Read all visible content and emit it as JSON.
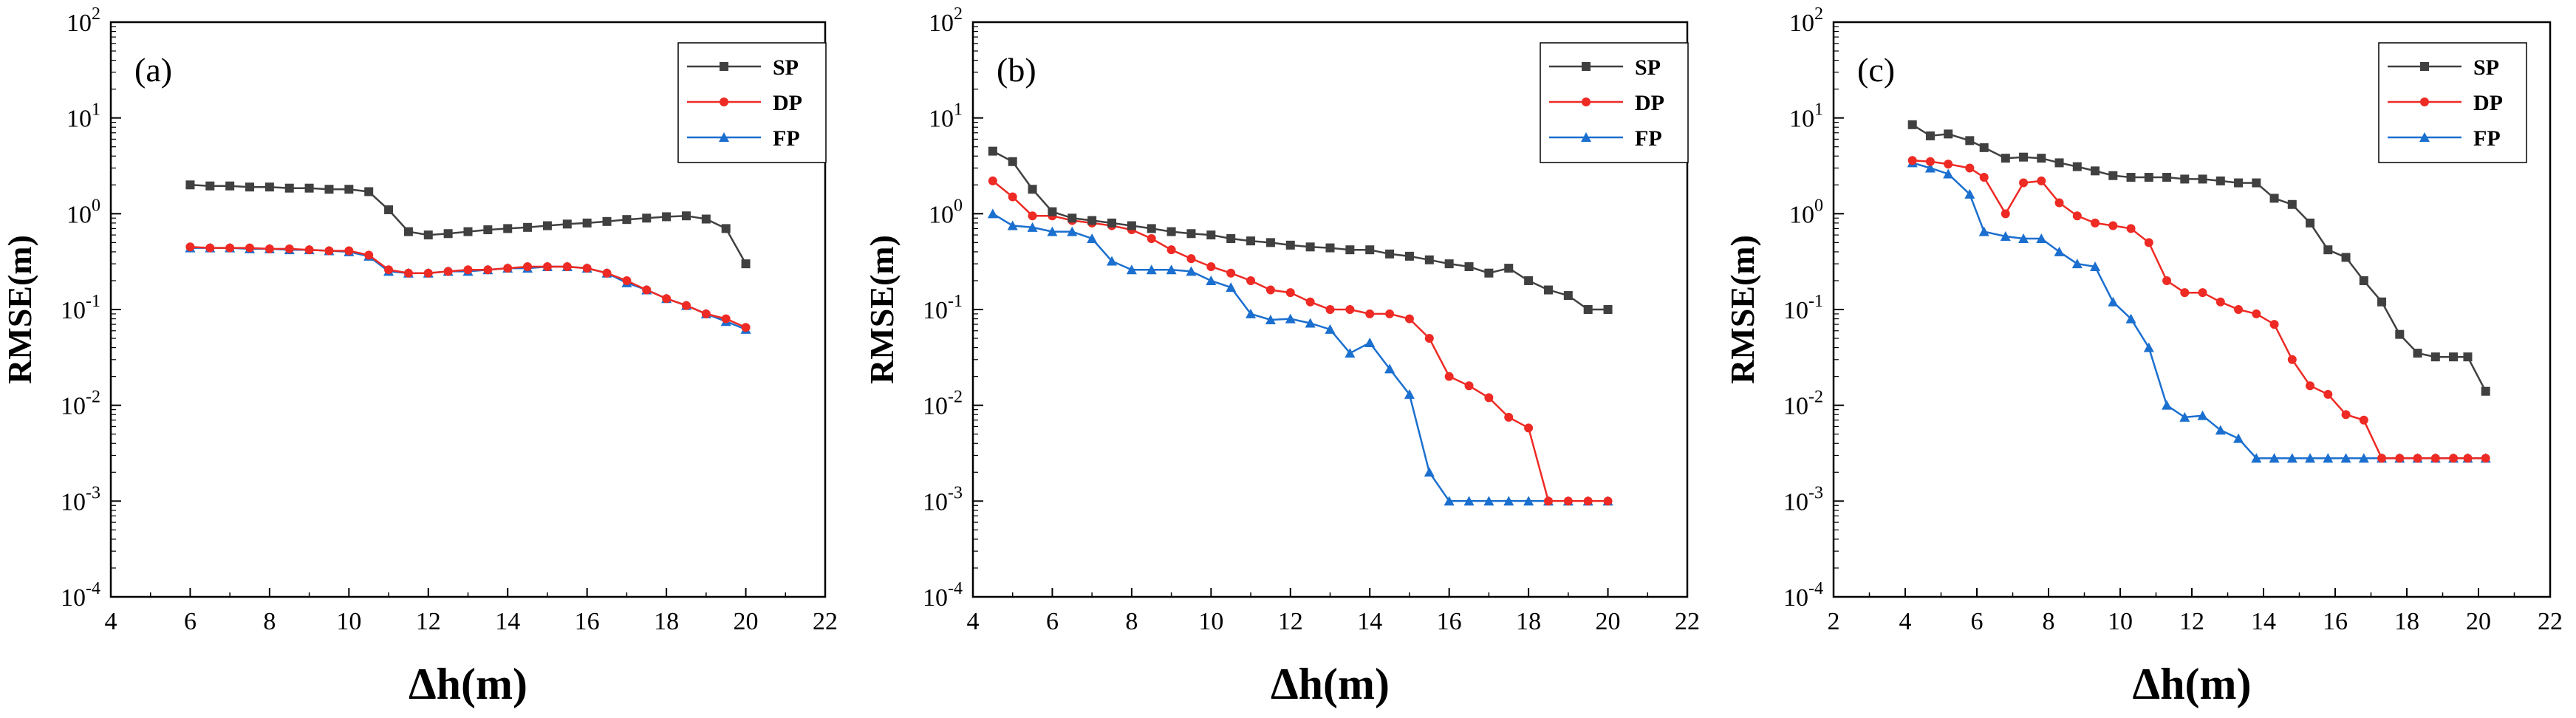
{
  "chart_data": [
    {
      "type": "line",
      "panel_label": "(a)",
      "xlabel": "Δh(m)",
      "ylabel": "RMSE(m)",
      "xlim": [
        4,
        22
      ],
      "ylim": [
        0.0001,
        100
      ],
      "yscale": "log",
      "xticks": [
        "4",
        "6",
        "8",
        "10",
        "12",
        "14",
        "16",
        "18",
        "20",
        "22"
      ],
      "yticks": [
        {
          "base": "10",
          "exp": "-4"
        },
        {
          "base": "10",
          "exp": "-3"
        },
        {
          "base": "10",
          "exp": "-2"
        },
        {
          "base": "10",
          "exp": "-1"
        },
        {
          "base": "10",
          "exp": "0"
        },
        {
          "base": "10",
          "exp": "1"
        },
        {
          "base": "10",
          "exp": "2"
        }
      ],
      "legend_position": "top-right",
      "grid": false,
      "series": [
        {
          "name": "SP",
          "color": "#404040",
          "marker": "square",
          "x": [
            6.0,
            6.5,
            7.0,
            7.5,
            8.0,
            8.5,
            9.0,
            9.5,
            10.0,
            10.5,
            11.0,
            11.5,
            12.0,
            12.5,
            13.0,
            13.5,
            14.0,
            14.5,
            15.0,
            15.5,
            16.0,
            16.5,
            17.0,
            17.5,
            18.0,
            18.5,
            19.0,
            19.5,
            20.0
          ],
          "y": [
            2.0,
            1.95,
            1.95,
            1.9,
            1.9,
            1.85,
            1.85,
            1.8,
            1.8,
            1.7,
            1.1,
            0.65,
            0.6,
            0.62,
            0.65,
            0.68,
            0.7,
            0.72,
            0.75,
            0.78,
            0.8,
            0.83,
            0.87,
            0.9,
            0.93,
            0.95,
            0.88,
            0.7,
            0.3
          ]
        },
        {
          "name": "DP",
          "color": "#ee2a24",
          "marker": "circle",
          "x": [
            6.0,
            6.5,
            7.0,
            7.5,
            8.0,
            8.5,
            9.0,
            9.5,
            10.0,
            10.5,
            11.0,
            11.5,
            12.0,
            12.5,
            13.0,
            13.5,
            14.0,
            14.5,
            15.0,
            15.5,
            16.0,
            16.5,
            17.0,
            17.5,
            18.0,
            18.5,
            19.0,
            19.5,
            20.0
          ],
          "y": [
            0.45,
            0.44,
            0.44,
            0.44,
            0.43,
            0.43,
            0.42,
            0.41,
            0.41,
            0.37,
            0.26,
            0.24,
            0.24,
            0.25,
            0.26,
            0.26,
            0.27,
            0.28,
            0.28,
            0.28,
            0.27,
            0.24,
            0.2,
            0.16,
            0.13,
            0.11,
            0.09,
            0.08,
            0.065
          ]
        },
        {
          "name": "FP",
          "color": "#1b6fcf",
          "marker": "triangle",
          "x": [
            6.0,
            6.5,
            7.0,
            7.5,
            8.0,
            8.5,
            9.0,
            9.5,
            10.0,
            10.5,
            11.0,
            11.5,
            12.0,
            12.5,
            13.0,
            13.5,
            14.0,
            14.5,
            15.0,
            15.5,
            16.0,
            16.5,
            17.0,
            17.5,
            18.0,
            18.5,
            19.0,
            19.5,
            20.0
          ],
          "y": [
            0.44,
            0.44,
            0.44,
            0.43,
            0.43,
            0.42,
            0.42,
            0.41,
            0.4,
            0.36,
            0.25,
            0.24,
            0.24,
            0.25,
            0.25,
            0.26,
            0.27,
            0.27,
            0.28,
            0.28,
            0.27,
            0.24,
            0.19,
            0.16,
            0.13,
            0.11,
            0.09,
            0.075,
            0.062
          ]
        }
      ]
    },
    {
      "type": "line",
      "panel_label": "(b)",
      "xlabel": "Δh(m)",
      "ylabel": "RMSE(m)",
      "xlim": [
        4,
        22
      ],
      "ylim": [
        0.0001,
        100
      ],
      "yscale": "log",
      "xticks": [
        "4",
        "6",
        "8",
        "10",
        "12",
        "14",
        "16",
        "18",
        "20",
        "22"
      ],
      "yticks": [
        {
          "base": "10",
          "exp": "-4"
        },
        {
          "base": "10",
          "exp": "-3"
        },
        {
          "base": "10",
          "exp": "-2"
        },
        {
          "base": "10",
          "exp": "-1"
        },
        {
          "base": "10",
          "exp": "0"
        },
        {
          "base": "10",
          "exp": "1"
        },
        {
          "base": "10",
          "exp": "2"
        }
      ],
      "legend_position": "top-right",
      "grid": false,
      "series": [
        {
          "name": "SP",
          "color": "#404040",
          "marker": "square",
          "x": [
            4.5,
            5.0,
            5.5,
            6.0,
            6.5,
            7.0,
            7.5,
            8.0,
            8.5,
            9.0,
            9.5,
            10.0,
            10.5,
            11.0,
            11.5,
            12.0,
            12.5,
            13.0,
            13.5,
            14.0,
            14.5,
            15.0,
            15.5,
            16.0,
            16.5,
            17.0,
            17.5,
            18.0,
            18.5,
            19.0,
            19.5,
            20.0
          ],
          "y": [
            4.5,
            3.5,
            1.8,
            1.05,
            0.9,
            0.85,
            0.8,
            0.75,
            0.7,
            0.65,
            0.62,
            0.6,
            0.55,
            0.52,
            0.5,
            0.47,
            0.45,
            0.44,
            0.42,
            0.42,
            0.38,
            0.36,
            0.33,
            0.3,
            0.28,
            0.24,
            0.27,
            0.2,
            0.16,
            0.14,
            0.1,
            0.1
          ]
        },
        {
          "name": "DP",
          "color": "#ee2a24",
          "marker": "circle",
          "x": [
            4.5,
            5.0,
            5.5,
            6.0,
            6.5,
            7.0,
            7.5,
            8.0,
            8.5,
            9.0,
            9.5,
            10.0,
            10.5,
            11.0,
            11.5,
            12.0,
            12.5,
            13.0,
            13.5,
            14.0,
            14.5,
            15.0,
            15.5,
            16.0,
            16.5,
            17.0,
            17.5,
            18.0,
            18.5,
            19.0,
            19.5,
            20.0
          ],
          "y": [
            2.2,
            1.5,
            0.95,
            0.95,
            0.85,
            0.8,
            0.75,
            0.68,
            0.55,
            0.42,
            0.34,
            0.28,
            0.24,
            0.2,
            0.16,
            0.15,
            0.12,
            0.1,
            0.1,
            0.09,
            0.09,
            0.08,
            0.05,
            0.02,
            0.016,
            0.012,
            0.0075,
            0.0058,
            0.001,
            0.001,
            0.001,
            0.001
          ]
        },
        {
          "name": "FP",
          "color": "#1b6fcf",
          "marker": "triangle",
          "x": [
            4.5,
            5.0,
            5.5,
            6.0,
            6.5,
            7.0,
            7.5,
            8.0,
            8.5,
            9.0,
            9.5,
            10.0,
            10.5,
            11.0,
            11.5,
            12.0,
            12.5,
            13.0,
            13.5,
            14.0,
            14.5,
            15.0,
            15.5,
            16.0,
            16.5,
            17.0,
            17.5,
            18.0,
            18.5,
            19.0,
            19.5,
            20.0
          ],
          "y": [
            1.0,
            0.75,
            0.72,
            0.65,
            0.65,
            0.55,
            0.32,
            0.26,
            0.26,
            0.26,
            0.25,
            0.2,
            0.17,
            0.09,
            0.078,
            0.08,
            0.072,
            0.062,
            0.035,
            0.045,
            0.024,
            0.013,
            0.002,
            0.001,
            0.001,
            0.001,
            0.001,
            0.001,
            0.001,
            0.001,
            0.001,
            0.001
          ]
        }
      ]
    },
    {
      "type": "line",
      "panel_label": "(c)",
      "xlabel": "Δh(m)",
      "ylabel": "RMSE(m)",
      "xlim": [
        2,
        22
      ],
      "ylim": [
        0.0001,
        100
      ],
      "yscale": "log",
      "xticks": [
        "2",
        "4",
        "6",
        "8",
        "10",
        "12",
        "14",
        "16",
        "18",
        "20",
        "22"
      ],
      "yticks": [
        {
          "base": "10",
          "exp": "-4"
        },
        {
          "base": "10",
          "exp": "-3"
        },
        {
          "base": "10",
          "exp": "-2"
        },
        {
          "base": "10",
          "exp": "-1"
        },
        {
          "base": "10",
          "exp": "0"
        },
        {
          "base": "10",
          "exp": "1"
        },
        {
          "base": "10",
          "exp": "2"
        }
      ],
      "legend_position": "top-right",
      "grid": false,
      "series": [
        {
          "name": "SP",
          "color": "#404040",
          "marker": "square",
          "x": [
            4.2,
            4.7,
            5.2,
            5.8,
            6.2,
            6.8,
            7.3,
            7.8,
            8.3,
            8.8,
            9.3,
            9.8,
            10.3,
            10.8,
            11.3,
            11.8,
            12.3,
            12.8,
            13.3,
            13.8,
            14.3,
            14.8,
            15.3,
            15.8,
            16.3,
            16.8,
            17.3,
            17.8,
            18.3,
            18.8,
            19.3,
            19.7,
            20.2
          ],
          "y": [
            8.5,
            6.5,
            6.8,
            5.8,
            4.9,
            3.8,
            3.9,
            3.8,
            3.4,
            3.1,
            2.8,
            2.5,
            2.4,
            2.4,
            2.4,
            2.3,
            2.3,
            2.2,
            2.1,
            2.1,
            1.45,
            1.25,
            0.8,
            0.42,
            0.35,
            0.2,
            0.12,
            0.055,
            0.035,
            0.032,
            0.032,
            0.032,
            0.014
          ]
        },
        {
          "name": "DP",
          "color": "#ee2a24",
          "marker": "circle",
          "x": [
            4.2,
            4.7,
            5.2,
            5.8,
            6.2,
            6.8,
            7.3,
            7.8,
            8.3,
            8.8,
            9.3,
            9.8,
            10.3,
            10.8,
            11.3,
            11.8,
            12.3,
            12.8,
            13.3,
            13.8,
            14.3,
            14.8,
            15.3,
            15.8,
            16.3,
            16.8,
            17.3,
            17.8,
            18.3,
            18.8,
            19.3,
            19.7,
            20.2
          ],
          "y": [
            3.6,
            3.5,
            3.3,
            3.0,
            2.4,
            1.0,
            2.1,
            2.2,
            1.3,
            0.95,
            0.8,
            0.75,
            0.7,
            0.5,
            0.2,
            0.15,
            0.15,
            0.12,
            0.1,
            0.09,
            0.07,
            0.03,
            0.016,
            0.013,
            0.008,
            0.007,
            0.0028,
            0.0028,
            0.0028,
            0.0028,
            0.0028,
            0.0028,
            0.0028
          ]
        },
        {
          "name": "FP",
          "color": "#1b6fcf",
          "marker": "triangle",
          "x": [
            4.2,
            4.7,
            5.2,
            5.8,
            6.2,
            6.8,
            7.3,
            7.8,
            8.3,
            8.8,
            9.3,
            9.8,
            10.3,
            10.8,
            11.3,
            11.8,
            12.3,
            12.8,
            13.3,
            13.8,
            14.3,
            14.8,
            15.3,
            15.8,
            16.3,
            16.8,
            17.3,
            17.8,
            18.3,
            18.8,
            19.3,
            19.7,
            20.2
          ],
          "y": [
            3.4,
            3.0,
            2.6,
            1.6,
            0.65,
            0.58,
            0.55,
            0.55,
            0.4,
            0.3,
            0.28,
            0.12,
            0.08,
            0.04,
            0.01,
            0.0075,
            0.0078,
            0.0055,
            0.0045,
            0.0028,
            0.0028,
            0.0028,
            0.0028,
            0.0028,
            0.0028,
            0.0028,
            0.0028,
            0.0028,
            0.0028,
            0.0028,
            0.0028,
            0.0028,
            0.0028
          ]
        }
      ]
    }
  ]
}
